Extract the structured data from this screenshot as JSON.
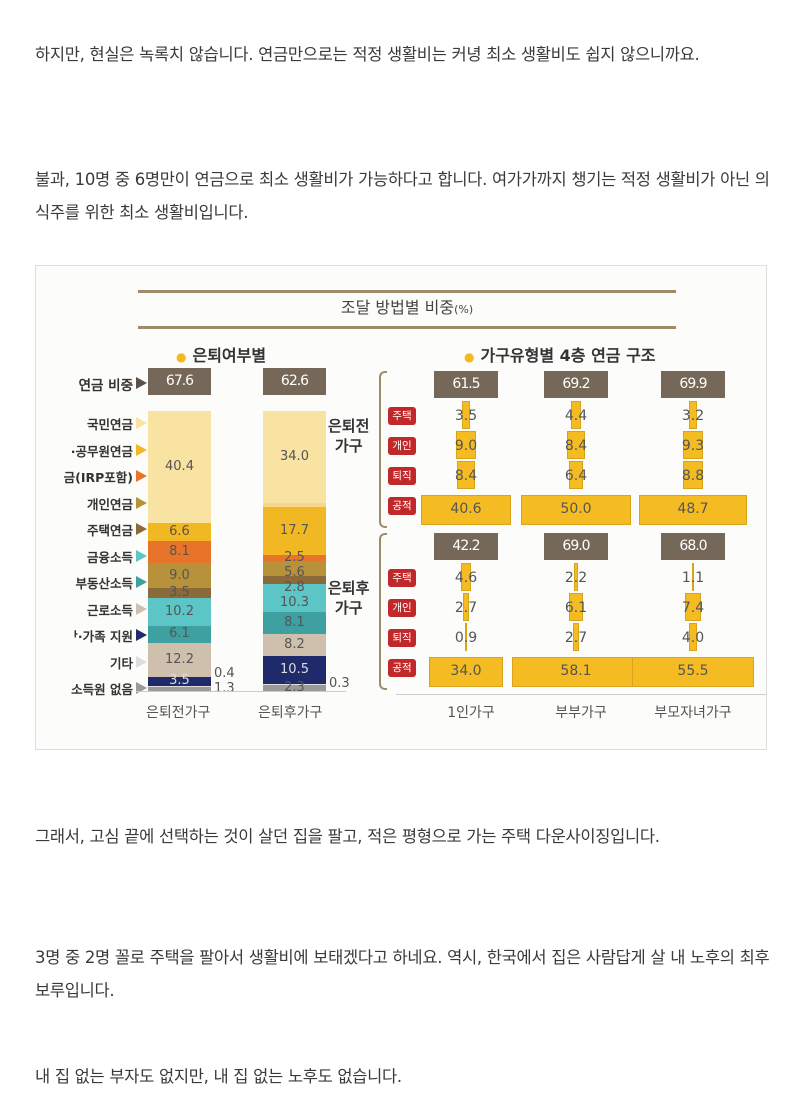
{
  "paragraphs": [
    "하지만, 현실은 녹록치 않습니다. 연금만으로는 적정 생활비는 커녕 최소 생활비도 쉽지 않으니까요.",
    "불과, 10명 중 6명만이 연금으로 최소 생활비가 가능하다고 합니다. 여가가까지 챙기는 적정 생활비가 아닌 의식주를 위한 최소 생활비입니다.",
    "그래서, 고심 끝에 선택하는 것이 살던 집을 팔고, 적은 평형으로 가는 주택 다운사이징입니다.",
    "3명 중 2명 꼴로 주택을 팔아서 생활비에 보태겠다고 하네요. 역시, 한국에서 집은 사람답게 살 내 노후의 최후 보루입니다.",
    "내 집 없는 부자도 없지만, 내 집 없는 노후도 없습니다."
  ],
  "chart": {
    "title": "조달 방법별 비중",
    "title_unit": "(%)",
    "left_subtitle": "은퇴여부별",
    "right_subtitle": "가구유형별 4층 연금 구조",
    "pension_share_label": "연금 비중",
    "legend": [
      {
        "label": "국민연금",
        "color": "#f8e3a3"
      },
      {
        "label": "·공무원연금",
        "color": "#f2b824"
      },
      {
        "label": "금(IRP포함)",
        "color": "#e8742a"
      },
      {
        "label": "개인연금",
        "color": "#b8923a"
      },
      {
        "label": "주택연금",
        "color": "#8a6a3a"
      },
      {
        "label": "금융소득",
        "color": "#5cc6c6"
      },
      {
        "label": "부동산소득",
        "color": "#3ea0a0"
      },
      {
        "label": "근로소득",
        "color": "#cfc0ae"
      },
      {
        "label": "ᅡ·가족 지원",
        "color": "#1e2a6a"
      },
      {
        "label": "기타",
        "color": "#dddddd"
      },
      {
        "label": "소득원 없음",
        "color": "#9a9a9a"
      }
    ],
    "stacks": [
      {
        "name": "은퇴전가구",
        "pension_share": "67.6",
        "segments": [
          {
            "value": 40.4,
            "label": "40.4",
            "color": "#f8e3a3"
          },
          {
            "value": 6.6,
            "label": "6.6",
            "color": "#f2b824"
          },
          {
            "value": 8.1,
            "label": "8.1",
            "color": "#e8742a"
          },
          {
            "value": 9.0,
            "label": "9.0",
            "color": "#b8923a"
          },
          {
            "value": 3.5,
            "label": "3.5",
            "color": "#8a6a3a"
          },
          {
            "value": 10.2,
            "label": "10.2",
            "color": "#5cc6c6"
          },
          {
            "value": 6.1,
            "label": "6.1",
            "color": "#3ea0a0"
          },
          {
            "value": 12.2,
            "label": "12.2",
            "color": "#cfc0ae"
          },
          {
            "value": 3.5,
            "label": "3.5",
            "color": "#1e2a6a"
          },
          {
            "value": 0.4,
            "label": "0.4",
            "color": "#dddddd"
          },
          {
            "value": 1.3,
            "label": "1.3",
            "color": "#9a9a9a"
          }
        ]
      },
      {
        "name": "은퇴후가구",
        "pension_share": "62.6",
        "segments": [
          {
            "value": 34.0,
            "label": "34.0",
            "color": "#f8e3a3"
          },
          {
            "value": 1.6,
            "label": "",
            "color": "#f6d88a"
          },
          {
            "value": 17.7,
            "label": "17.7",
            "color": "#f2b824"
          },
          {
            "value": 2.5,
            "label": "2.5",
            "color": "#e8742a"
          },
          {
            "value": 5.6,
            "label": "5.6",
            "color": "#b8923a"
          },
          {
            "value": 2.8,
            "label": "2.8",
            "color": "#8a6a3a"
          },
          {
            "value": 10.3,
            "label": "10.3",
            "color": "#5cc6c6"
          },
          {
            "value": 8.1,
            "label": "8.1",
            "color": "#3ea0a0"
          },
          {
            "value": 8.2,
            "label": "8.2",
            "color": "#cfc0ae"
          },
          {
            "value": 10.5,
            "label": "10.5",
            "color": "#1e2a6a"
          },
          {
            "value": 0.3,
            "label": "0.3",
            "color": "#dddddd"
          },
          {
            "value": 2.3,
            "label": "2.3",
            "color": "#9a9a9a"
          }
        ]
      }
    ],
    "tiers": [
      "주택",
      "개인",
      "퇴직",
      "공적"
    ],
    "household_types": [
      "1인가구",
      "부부가구",
      "부모자녀가구"
    ],
    "groups": [
      {
        "name_line1": "은퇴전",
        "name_line2": "가구",
        "totals": [
          "61.5",
          "69.2",
          "69.9"
        ],
        "values": [
          [
            3.5,
            4.4,
            3.2
          ],
          [
            9.0,
            8.4,
            9.3
          ],
          [
            8.4,
            6.4,
            8.8
          ],
          [
            40.6,
            50.0,
            48.7
          ]
        ]
      },
      {
        "name_line1": "은퇴후",
        "name_line2": "가구",
        "totals": [
          "42.2",
          "69.0",
          "68.0"
        ],
        "values": [
          [
            4.6,
            2.2,
            1.1
          ],
          [
            2.7,
            6.1,
            7.4
          ],
          [
            0.9,
            2.7,
            4.0
          ],
          [
            34.0,
            58.1,
            55.5
          ]
        ]
      }
    ]
  }
}
